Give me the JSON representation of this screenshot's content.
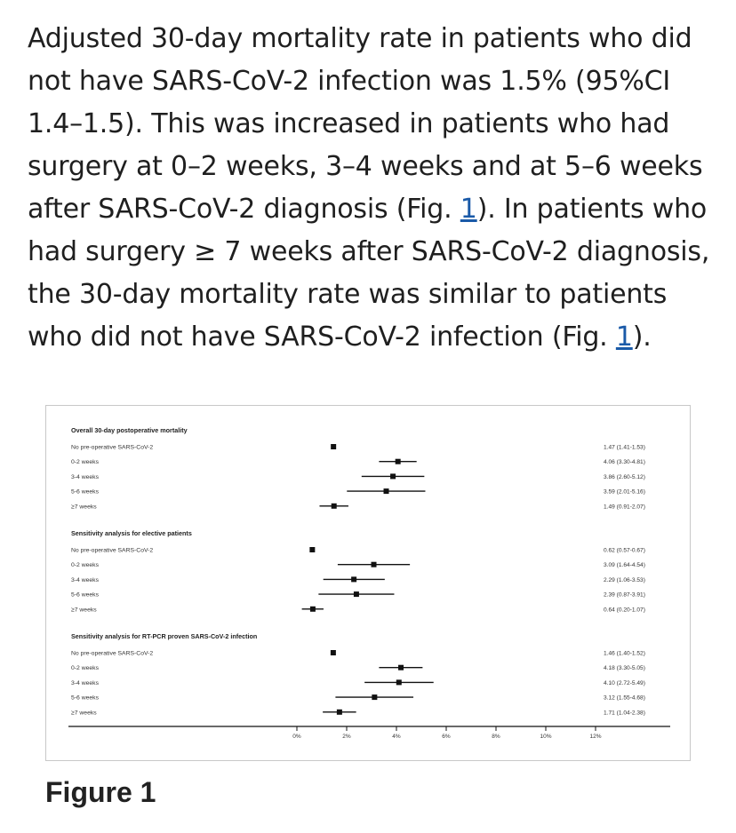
{
  "article": {
    "seg1": "Adjusted 30-day mortality rate in patients who did not have SARS-CoV-2 infection was 1.5% (95%CI 1.4–1.5). This was increased in patients who had surgery at 0–2 weeks, 3–4 weeks and at 5–6 weeks after SARS-CoV-2 diagnosis (Fig. ",
    "link1": "1",
    "seg2": "). In patients who had surgery ≥ 7 weeks after SARS-CoV-2 diagnosis, the 30-day mortality rate was similar to patients who did not have SARS-CoV-2 infection (Fig. ",
    "link2": "1",
    "seg3": ")."
  },
  "figure": {
    "caption": "Figure 1"
  },
  "chart_data": {
    "type": "forest",
    "xlim": [
      0,
      12
    ],
    "xticks": [
      0,
      2,
      4,
      6,
      8,
      10,
      12
    ],
    "xtick_labels": [
      "0%",
      "2%",
      "4%",
      "6%",
      "8%",
      "10%",
      "12%"
    ],
    "grid": false,
    "groups": [
      {
        "title": "Overall 30-day postoperative mortality",
        "rows": [
          {
            "label": "No pre-operative SARS-CoV-2",
            "est": 1.47,
            "lo": 1.41,
            "hi": 1.53,
            "text": "1.47 (1.41-1.53)"
          },
          {
            "label": "0-2 weeks",
            "est": 4.06,
            "lo": 3.3,
            "hi": 4.81,
            "text": "4.06 (3.30-4.81)"
          },
          {
            "label": "3-4 weeks",
            "est": 3.86,
            "lo": 2.6,
            "hi": 5.12,
            "text": "3.86 (2.60-5.12)"
          },
          {
            "label": "5-6 weeks",
            "est": 3.59,
            "lo": 2.01,
            "hi": 5.16,
            "text": "3.59 (2.01-5.16)"
          },
          {
            "label": "≥7 weeks",
            "est": 1.49,
            "lo": 0.91,
            "hi": 2.07,
            "text": "1.49 (0.91-2.07)"
          }
        ]
      },
      {
        "title": "Sensitivity analysis for elective patients",
        "rows": [
          {
            "label": "No pre-operative SARS-CoV-2",
            "est": 0.62,
            "lo": 0.57,
            "hi": 0.67,
            "text": "0.62 (0.57-0.67)"
          },
          {
            "label": "0-2 weeks",
            "est": 3.09,
            "lo": 1.64,
            "hi": 4.54,
            "text": "3.09 (1.64-4.54)"
          },
          {
            "label": "3-4 weeks",
            "est": 2.29,
            "lo": 1.06,
            "hi": 3.53,
            "text": "2.29 (1.06-3.53)"
          },
          {
            "label": "5-6 weeks",
            "est": 2.39,
            "lo": 0.87,
            "hi": 3.91,
            "text": "2.39 (0.87-3.91)"
          },
          {
            "label": "≥7 weeks",
            "est": 0.64,
            "lo": 0.2,
            "hi": 1.07,
            "text": "0.64 (0.20-1.07)"
          }
        ]
      },
      {
        "title": "Sensitivity analysis for RT-PCR proven SARS-CoV-2 infection",
        "rows": [
          {
            "label": "No pre-operative SARS-CoV-2",
            "est": 1.46,
            "lo": 1.4,
            "hi": 1.52,
            "text": "1.46 (1.40-1.52)"
          },
          {
            "label": "0-2 weeks",
            "est": 4.18,
            "lo": 3.3,
            "hi": 5.05,
            "text": "4.18 (3.30-5.05)"
          },
          {
            "label": "3-4 weeks",
            "est": 4.1,
            "lo": 2.72,
            "hi": 5.49,
            "text": "4.10 (2.72-5.49)"
          },
          {
            "label": "5-6 weeks",
            "est": 3.12,
            "lo": 1.55,
            "hi": 4.68,
            "text": "3.12 (1.55-4.68)"
          },
          {
            "label": "≥7 weeks",
            "est": 1.71,
            "lo": 1.04,
            "hi": 2.38,
            "text": "1.71 (1.04-2.38)"
          }
        ]
      }
    ]
  }
}
